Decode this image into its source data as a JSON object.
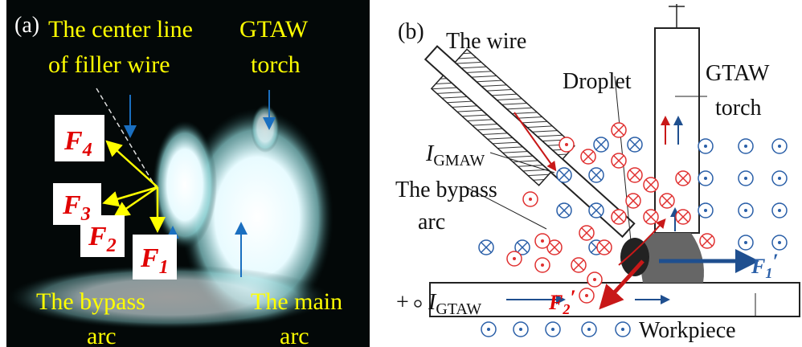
{
  "panel_a": {
    "label": "(a)",
    "center_line": [
      "The center line",
      "of filler wire"
    ],
    "torch": [
      "GTAW",
      "torch"
    ],
    "bypass_arc": [
      "The bypass",
      "arc"
    ],
    "main_arc": [
      "The main",
      "arc"
    ],
    "forces": [
      {
        "symbol": "F",
        "subscript": "4"
      },
      {
        "symbol": "F",
        "subscript": "3"
      },
      {
        "symbol": "F",
        "subscript": "2"
      },
      {
        "symbol": "F",
        "subscript": "1"
      }
    ]
  },
  "panel_b": {
    "label": "(b)",
    "wire": "The wire",
    "droplet": "Droplet",
    "torch": [
      "GTAW",
      "torch"
    ],
    "i_gmaw": {
      "symbol": "I",
      "subscript": "GMAW"
    },
    "bypass_arc": [
      "The bypass",
      "arc"
    ],
    "i_gtaw": {
      "symbol": "I",
      "subscript": "GTAW"
    },
    "plus": "+",
    "f1": {
      "symbol": "F",
      "subscript": "1",
      "prime": "′"
    },
    "f2": {
      "symbol": "F",
      "subscript": "2",
      "prime": "′"
    },
    "workpiece": "Workpiece"
  }
}
